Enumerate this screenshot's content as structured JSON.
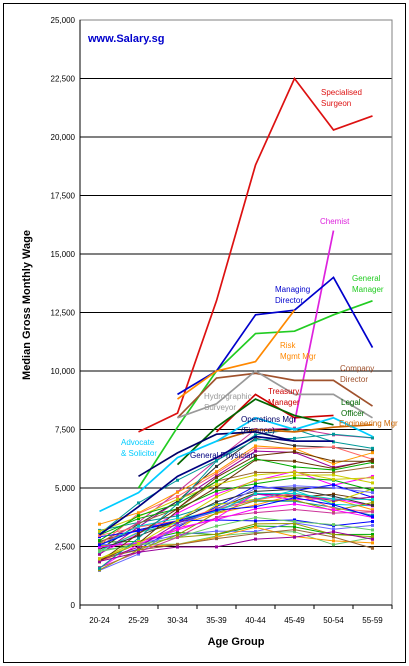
{
  "chart_data": {
    "type": "line",
    "watermark": "www.Salary.sg",
    "xlabel": "Age Group",
    "ylabel": "Median Gross Monthly Wage",
    "categories": [
      "20-24",
      "25-29",
      "30-34",
      "35-39",
      "40-44",
      "45-49",
      "50-54",
      "55-59"
    ],
    "ylim": [
      0,
      25000
    ],
    "y_ticks": [
      "0",
      "2,500",
      "5,000",
      "7,500",
      "10,000",
      "12,500",
      "15,000",
      "17,500",
      "20,000",
      "22,500",
      "25,000"
    ],
    "grid": true,
    "colors": {
      "plot_border": "#808080",
      "grid": "#000000",
      "watermark": "#0000cc"
    },
    "highlighted_series": [
      {
        "name": "Specialised Surgeon",
        "label_lines": [
          "Specialised",
          "Surgeon"
        ],
        "color": "#dd1111",
        "values": [
          null,
          7400,
          8200,
          13000,
          18800,
          22500,
          20300,
          20900
        ]
      },
      {
        "name": "Chemist",
        "label_lines": [
          "Chemist"
        ],
        "color": "#dd22dd",
        "values": [
          null,
          null,
          null,
          null,
          null,
          7800,
          16000,
          null
        ]
      },
      {
        "name": "General Manager",
        "label_lines": [
          "General",
          "Manager"
        ],
        "color": "#22cc22",
        "values": [
          null,
          5000,
          7600,
          10000,
          11600,
          11700,
          12400,
          13000
        ]
      },
      {
        "name": "Managing Director",
        "label_lines": [
          "Managing",
          "Director"
        ],
        "color": "#0000cc",
        "values": [
          null,
          null,
          9000,
          10000,
          12400,
          12600,
          14000,
          11000
        ]
      },
      {
        "name": "Risk Mgmt Mgr",
        "label_lines": [
          "Risk",
          "Mgmt Mgr"
        ],
        "color": "#ff8800",
        "values": [
          null,
          null,
          8800,
          10000,
          10400,
          12600,
          null,
          null
        ]
      },
      {
        "name": "Company Director",
        "label_lines": [
          "Company",
          "Director"
        ],
        "color": "#a0522d",
        "values": [
          null,
          null,
          8000,
          9700,
          9900,
          9600,
          9600,
          8500
        ]
      },
      {
        "name": "Treasury Manager",
        "label_lines": [
          "Treasury",
          "Manager"
        ],
        "color": "#cc0000",
        "values": [
          null,
          null,
          null,
          7400,
          9000,
          8000,
          8100,
          null
        ]
      },
      {
        "name": "Legal Officer",
        "label_lines": [
          "Legal",
          "Officer"
        ],
        "color": "#006600",
        "values": [
          null,
          null,
          6000,
          7600,
          8800,
          8100,
          7700,
          null
        ]
      },
      {
        "name": "Engineering Mgr",
        "label_lines": [
          "Engineering Mgr"
        ],
        "color": "#cc6600",
        "values": [
          null,
          null,
          null,
          7000,
          7500,
          7400,
          7600,
          7700
        ]
      },
      {
        "name": "Hydrographic Surveyor",
        "label_lines": [
          "Hydrographic",
          "Surveyor"
        ],
        "color": "#999999",
        "values": [
          null,
          null,
          8000,
          8600,
          10000,
          9000,
          9000,
          8000
        ]
      },
      {
        "name": "Operations Mgr (Finance)",
        "label_lines": [
          "Operations Mgr",
          "(Finance)"
        ],
        "color": "#000066",
        "values": [
          null,
          5500,
          6500,
          7300,
          7400,
          7000,
          7000,
          null
        ]
      },
      {
        "name": "Advocate & Solicitor",
        "label_lines": [
          "Advocate",
          "& Solicitor"
        ],
        "color": "#00ccff",
        "values": [
          4000,
          4800,
          6300,
          7000,
          8000,
          7500,
          8000,
          7200
        ]
      },
      {
        "name": "General Physician",
        "label_lines": [
          "General Physician"
        ],
        "color": "#000080",
        "values": [
          3000,
          4200,
          5500,
          6300,
          7200,
          7000,
          7000,
          null
        ]
      }
    ],
    "other_series_count": 40
  }
}
